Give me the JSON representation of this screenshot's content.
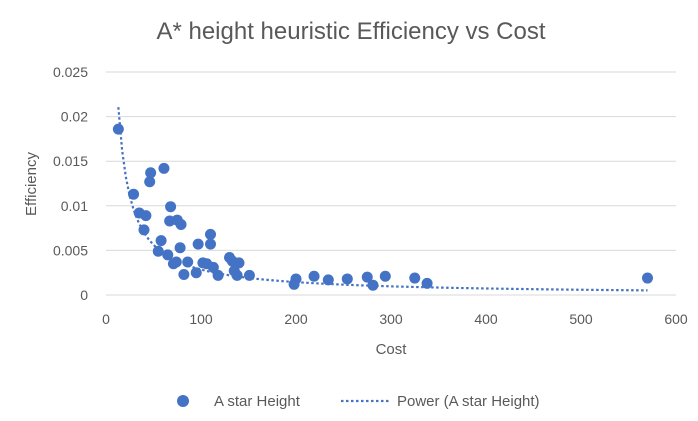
{
  "chart_data": {
    "type": "scatter",
    "title": "A* height heuristic Efficiency vs Cost",
    "xlabel": "Cost",
    "ylabel": "Efficiency",
    "xlim": [
      0,
      600
    ],
    "ylim": [
      0,
      0.025
    ],
    "xticks": [
      "0",
      "100",
      "200",
      "300",
      "400",
      "500",
      "600"
    ],
    "yticks": [
      "0",
      "0.005",
      "0.01",
      "0.015",
      "0.02",
      "0.025"
    ],
    "grid": true,
    "legend_position": "bottom",
    "colors": {
      "points": "#4472c4",
      "trendline": "#4472c4",
      "grid": "#d9d9d9",
      "text": "#595959"
    },
    "series": [
      {
        "name": "A star Height",
        "points": [
          [
            13,
            0.0186
          ],
          [
            29,
            0.0113
          ],
          [
            35,
            0.0092
          ],
          [
            40,
            0.0073
          ],
          [
            42,
            0.0089
          ],
          [
            46,
            0.0127
          ],
          [
            47,
            0.0137
          ],
          [
            55,
            0.0049
          ],
          [
            58,
            0.0061
          ],
          [
            61,
            0.0142
          ],
          [
            65,
            0.0045
          ],
          [
            67,
            0.0083
          ],
          [
            68,
            0.0099
          ],
          [
            71,
            0.0035
          ],
          [
            74,
            0.0037
          ],
          [
            75,
            0.0084
          ],
          [
            78,
            0.0053
          ],
          [
            79,
            0.0079
          ],
          [
            82,
            0.0023
          ],
          [
            86,
            0.0037
          ],
          [
            95,
            0.0025
          ],
          [
            97,
            0.0057
          ],
          [
            102,
            0.0036
          ],
          [
            106,
            0.0035
          ],
          [
            110,
            0.0057
          ],
          [
            110,
            0.0068
          ],
          [
            113,
            0.0031
          ],
          [
            118,
            0.0022
          ],
          [
            130,
            0.0042
          ],
          [
            133,
            0.0038
          ],
          [
            135,
            0.0027
          ],
          [
            138,
            0.0022
          ],
          [
            140,
            0.0036
          ],
          [
            151,
            0.0022
          ],
          [
            198,
            0.0012
          ],
          [
            200,
            0.0018
          ],
          [
            219,
            0.0021
          ],
          [
            234,
            0.0017
          ],
          [
            254,
            0.0018
          ],
          [
            275,
            0.002
          ],
          [
            281,
            0.0011
          ],
          [
            294,
            0.0021
          ],
          [
            325,
            0.0019
          ],
          [
            338,
            0.0013
          ],
          [
            570,
            0.0019
          ]
        ]
      },
      {
        "name": "Power (A star Height)",
        "kind": "trendline",
        "model": "power",
        "a": 0.26,
        "b": -0.98,
        "x_range": [
          13,
          570
        ]
      }
    ]
  }
}
